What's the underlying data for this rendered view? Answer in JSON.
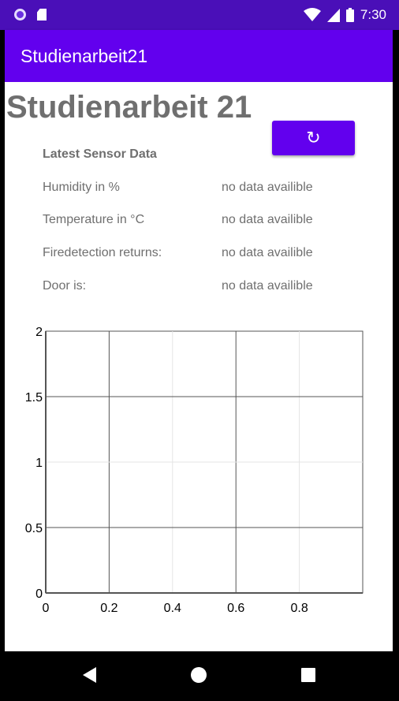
{
  "status_bar": {
    "time": "7:30",
    "icons": [
      "app-circle-icon",
      "sd-card-icon",
      "wifi-icon",
      "signal-icon",
      "battery-icon"
    ]
  },
  "app_bar": {
    "title": "Studienarbeit21"
  },
  "main": {
    "heading": "Studienarbeit 21",
    "refresh_button": {
      "icon": "refresh-icon",
      "glyph": "↻"
    },
    "sensor_table": {
      "header": "Latest Sensor Data",
      "rows": [
        {
          "label": "Humidity in %",
          "value": "no data availible"
        },
        {
          "label": "Temperature in °C",
          "value": "no data availible"
        },
        {
          "label": "Firedetection returns:",
          "value": "no data availible"
        },
        {
          "label": "Door is:",
          "value": "no data availible"
        }
      ]
    }
  },
  "chart_data": {
    "type": "line",
    "series": [],
    "x_ticks": [
      "0",
      "0.2",
      "0.4",
      "0.6",
      "0.8"
    ],
    "y_ticks": [
      "0",
      "0.5",
      "1",
      "1.5",
      "2"
    ],
    "xlim": [
      0,
      1
    ],
    "ylim": [
      0,
      2
    ],
    "grid": true
  },
  "nav_bar": {
    "icons": [
      "back-icon",
      "home-icon",
      "recents-icon"
    ]
  },
  "colors": {
    "status_bar": "#4a0fb8",
    "primary": "#6200ee",
    "text_gray": "#6f6f6f"
  }
}
